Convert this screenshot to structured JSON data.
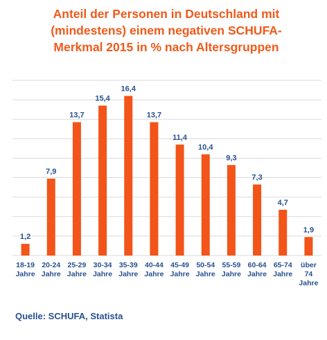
{
  "title_lines": [
    "Anteil der Personen in Deutschland mit",
    "(mindestens) einem negativen SCHUFA-",
    "Merkmal 2015 in % nach Altersgruppen"
  ],
  "source": "Quelle: SCHUFA, Statista",
  "colors": {
    "bar": "#f25419",
    "title": "#ef5a1a",
    "value_label": "#27508f",
    "category_label": "#27508f",
    "gridline": "#d9d9d9"
  },
  "chart_data": {
    "type": "bar",
    "title": "Anteil der Personen in Deutschland mit (mindestens) einem negativen SCHUFA-Merkmal 2015 in % nach Altersgruppen",
    "categories": [
      [
        "18-19",
        "Jahre"
      ],
      [
        "20-24",
        "Jahre"
      ],
      [
        "25-29",
        "Jahre"
      ],
      [
        "30-34",
        "Jahre"
      ],
      [
        "35-39",
        "Jahre"
      ],
      [
        "40-44",
        "Jahre"
      ],
      [
        "45-49",
        "Jahre"
      ],
      [
        "50-54",
        "Jahre"
      ],
      [
        "55-59",
        "Jahre"
      ],
      [
        "60-64",
        "Jahre"
      ],
      [
        "65-74",
        "Jahre"
      ],
      [
        "über",
        "74",
        "Jahre"
      ]
    ],
    "values": [
      1.2,
      7.9,
      13.7,
      15.4,
      16.4,
      13.7,
      11.4,
      10.4,
      9.3,
      7.3,
      4.7,
      1.9
    ],
    "value_labels": [
      "1,2",
      "7,9",
      "13,7",
      "15,4",
      "16,4",
      "13,7",
      "11,4",
      "10,4",
      "9,3",
      "7,3",
      "4,7",
      "1,9"
    ],
    "xlabel": "",
    "ylabel": "",
    "ylim": [
      0,
      18
    ],
    "gridline_step": 2,
    "grid": true,
    "show_y_axis_labels": false
  }
}
